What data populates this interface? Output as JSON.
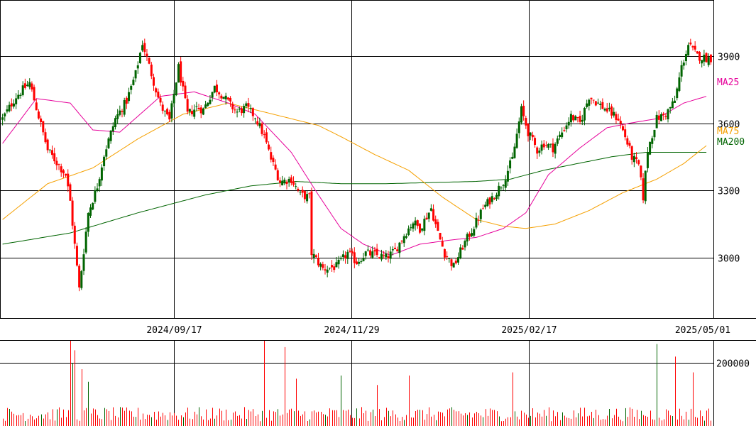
{
  "colors": {
    "up": "#006400",
    "down": "#ff0000",
    "ma25": "#e6009a",
    "ma75": "#f5a000",
    "ma200": "#006400",
    "grid": "#000000",
    "volume": "#ff0000"
  },
  "chart_data": {
    "type": "candlestick",
    "price_axis": {
      "range": [
        2730,
        4150
      ],
      "ticks": [
        3000,
        3300,
        3600,
        3900
      ],
      "side": "right"
    },
    "volume_axis": {
      "range": [
        0,
        270000
      ],
      "ticks": [
        200000
      ],
      "tick_labels": [
        "200000"
      ]
    },
    "x_axis": {
      "labels": [
        "2024/09/17",
        "2024/11/29",
        "2025/02/17",
        "2025/05/01"
      ]
    },
    "grid": true,
    "legend": [
      {
        "key": "ma25",
        "label": "MA25"
      },
      {
        "key": "ma75",
        "label": "MA75"
      },
      {
        "key": "ma200",
        "label": "MA200"
      }
    ],
    "anchors": [
      [
        0,
        3620
      ],
      [
        6,
        3720
      ],
      [
        12,
        3780
      ],
      [
        20,
        3480
      ],
      [
        28,
        3370
      ],
      [
        30,
        3250
      ],
      [
        34,
        2860
      ],
      [
        38,
        3200
      ],
      [
        42,
        3320
      ],
      [
        45,
        3460
      ],
      [
        50,
        3620
      ],
      [
        55,
        3700
      ],
      [
        59,
        3820
      ],
      [
        62,
        3960
      ],
      [
        66,
        3820
      ],
      [
        70,
        3680
      ],
      [
        74,
        3610
      ],
      [
        78,
        3850
      ],
      [
        82,
        3640
      ],
      [
        86,
        3670
      ],
      [
        89,
        3660
      ],
      [
        94,
        3760
      ],
      [
        98,
        3720
      ],
      [
        101,
        3680
      ],
      [
        104,
        3650
      ],
      [
        108,
        3670
      ],
      [
        112,
        3630
      ],
      [
        116,
        3540
      ],
      [
        119,
        3440
      ],
      [
        123,
        3340
      ],
      [
        128,
        3350
      ],
      [
        132,
        3280
      ],
      [
        136,
        3270
      ],
      [
        137,
        3020
      ],
      [
        142,
        2950
      ],
      [
        148,
        2960
      ],
      [
        153,
        3020
      ],
      [
        157,
        2980
      ],
      [
        161,
        3020
      ],
      [
        166,
        3010
      ],
      [
        170,
        3000
      ],
      [
        174,
        3030
      ],
      [
        178,
        3100
      ],
      [
        182,
        3160
      ],
      [
        185,
        3130
      ],
      [
        190,
        3220
      ],
      [
        193,
        3110
      ],
      [
        196,
        3020
      ],
      [
        200,
        2960
      ],
      [
        204,
        3050
      ],
      [
        209,
        3140
      ],
      [
        213,
        3220
      ],
      [
        218,
        3280
      ],
      [
        222,
        3340
      ],
      [
        226,
        3440
      ],
      [
        230,
        3660
      ],
      [
        233,
        3560
      ],
      [
        237,
        3480
      ],
      [
        240,
        3510
      ],
      [
        244,
        3490
      ],
      [
        248,
        3560
      ],
      [
        252,
        3630
      ],
      [
        256,
        3600
      ],
      [
        260,
        3720
      ],
      [
        265,
        3680
      ],
      [
        269,
        3650
      ],
      [
        273,
        3620
      ],
      [
        276,
        3540
      ],
      [
        279,
        3450
      ],
      [
        282,
        3410
      ],
      [
        284,
        3270
      ],
      [
        286,
        3480
      ],
      [
        290,
        3620
      ],
      [
        294,
        3640
      ],
      [
        298,
        3700
      ],
      [
        301,
        3850
      ],
      [
        304,
        3950
      ],
      [
        308,
        3900
      ],
      [
        312,
        3890
      ],
      [
        314,
        3890
      ]
    ],
    "n_candles": 315,
    "ma25": [
      [
        0,
        3510
      ],
      [
        15,
        3710
      ],
      [
        30,
        3690
      ],
      [
        40,
        3570
      ],
      [
        52,
        3560
      ],
      [
        70,
        3720
      ],
      [
        85,
        3740
      ],
      [
        100,
        3690
      ],
      [
        112,
        3640
      ],
      [
        128,
        3470
      ],
      [
        140,
        3280
      ],
      [
        150,
        3130
      ],
      [
        160,
        3060
      ],
      [
        172,
        3010
      ],
      [
        185,
        3060
      ],
      [
        200,
        3080
      ],
      [
        210,
        3090
      ],
      [
        222,
        3130
      ],
      [
        232,
        3200
      ],
      [
        242,
        3370
      ],
      [
        256,
        3490
      ],
      [
        268,
        3580
      ],
      [
        278,
        3600
      ],
      [
        290,
        3620
      ],
      [
        302,
        3690
      ],
      [
        312,
        3720
      ]
    ],
    "ma75": [
      [
        0,
        3170
      ],
      [
        20,
        3330
      ],
      [
        40,
        3400
      ],
      [
        60,
        3530
      ],
      [
        80,
        3640
      ],
      [
        100,
        3690
      ],
      [
        120,
        3640
      ],
      [
        140,
        3590
      ],
      [
        150,
        3540
      ],
      [
        165,
        3460
      ],
      [
        180,
        3390
      ],
      [
        195,
        3270
      ],
      [
        210,
        3170
      ],
      [
        222,
        3140
      ],
      [
        232,
        3130
      ],
      [
        245,
        3150
      ],
      [
        260,
        3210
      ],
      [
        275,
        3290
      ],
      [
        290,
        3350
      ],
      [
        302,
        3420
      ],
      [
        312,
        3500
      ]
    ],
    "ma200": [
      [
        0,
        3060
      ],
      [
        30,
        3110
      ],
      [
        60,
        3200
      ],
      [
        90,
        3280
      ],
      [
        110,
        3320
      ],
      [
        130,
        3340
      ],
      [
        150,
        3330
      ],
      [
        170,
        3330
      ],
      [
        190,
        3335
      ],
      [
        210,
        3340
      ],
      [
        225,
        3350
      ],
      [
        240,
        3390
      ],
      [
        255,
        3420
      ],
      [
        270,
        3450
      ],
      [
        285,
        3470
      ],
      [
        300,
        3470
      ],
      [
        312,
        3470
      ]
    ],
    "volume_spikes": [
      [
        30,
        280000
      ],
      [
        31,
        200000
      ],
      [
        32,
        240000
      ],
      [
        35,
        180000
      ],
      [
        38,
        140000
      ],
      [
        116,
        330000
      ],
      [
        125,
        250000
      ],
      [
        130,
        150000
      ],
      [
        150,
        160000
      ],
      [
        166,
        130000
      ],
      [
        180,
        160000
      ],
      [
        226,
        170000
      ],
      [
        290,
        260000
      ],
      [
        298,
        220000
      ],
      [
        306,
        170000
      ]
    ]
  }
}
